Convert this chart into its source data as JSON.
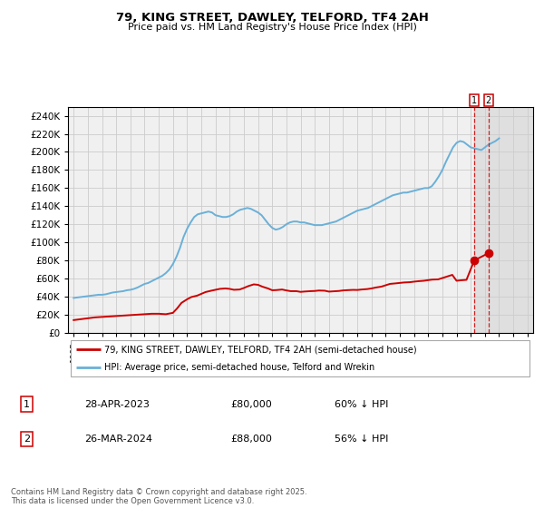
{
  "title": "79, KING STREET, DAWLEY, TELFORD, TF4 2AH",
  "subtitle": "Price paid vs. HM Land Registry's House Price Index (HPI)",
  "ylim": [
    0,
    250000
  ],
  "yticks": [
    0,
    20000,
    40000,
    60000,
    80000,
    100000,
    120000,
    140000,
    160000,
    180000,
    200000,
    220000,
    240000
  ],
  "xlim_min": 1994.6,
  "xlim_max": 2027.4,
  "xticks": [
    1995,
    1996,
    1997,
    1998,
    1999,
    2000,
    2001,
    2002,
    2003,
    2004,
    2005,
    2006,
    2007,
    2008,
    2009,
    2010,
    2011,
    2012,
    2013,
    2014,
    2015,
    2016,
    2017,
    2018,
    2019,
    2020,
    2021,
    2022,
    2023,
    2024,
    2025,
    2026,
    2027
  ],
  "hpi_color": "#6ab0d8",
  "price_color": "#cc0000",
  "grid_color": "#cccccc",
  "background_color": "#ffffff",
  "plot_bg_color": "#f0f0f0",
  "shaded_color": "#dcdcdc",
  "legend_label_price": "79, KING STREET, DAWLEY, TELFORD, TF4 2AH (semi-detached house)",
  "legend_label_hpi": "HPI: Average price, semi-detached house, Telford and Wrekin",
  "transactions": [
    {
      "label": "1",
      "date": "28-APR-2023",
      "price": 80000,
      "pct": "60% ↓ HPI"
    },
    {
      "label": "2",
      "date": "26-MAR-2024",
      "price": 88000,
      "pct": "56% ↓ HPI"
    }
  ],
  "footnote": "Contains HM Land Registry data © Crown copyright and database right 2025.\nThis data is licensed under the Open Government Licence v3.0.",
  "hpi_data_x": [
    1995.0,
    1995.25,
    1995.5,
    1995.75,
    1996.0,
    1996.25,
    1996.5,
    1996.75,
    1997.0,
    1997.25,
    1997.5,
    1997.75,
    1998.0,
    1998.25,
    1998.5,
    1998.75,
    1999.0,
    1999.25,
    1999.5,
    1999.75,
    2000.0,
    2000.25,
    2000.5,
    2000.75,
    2001.0,
    2001.25,
    2001.5,
    2001.75,
    2002.0,
    2002.25,
    2002.5,
    2002.75,
    2003.0,
    2003.25,
    2003.5,
    2003.75,
    2004.0,
    2004.25,
    2004.5,
    2004.75,
    2005.0,
    2005.25,
    2005.5,
    2005.75,
    2006.0,
    2006.25,
    2006.5,
    2006.75,
    2007.0,
    2007.25,
    2007.5,
    2007.75,
    2008.0,
    2008.25,
    2008.5,
    2008.75,
    2009.0,
    2009.25,
    2009.5,
    2009.75,
    2010.0,
    2010.25,
    2010.5,
    2010.75,
    2011.0,
    2011.25,
    2011.5,
    2011.75,
    2012.0,
    2012.25,
    2012.5,
    2012.75,
    2013.0,
    2013.25,
    2013.5,
    2013.75,
    2014.0,
    2014.25,
    2014.5,
    2014.75,
    2015.0,
    2015.25,
    2015.5,
    2015.75,
    2016.0,
    2016.25,
    2016.5,
    2016.75,
    2017.0,
    2017.25,
    2017.5,
    2017.75,
    2018.0,
    2018.25,
    2018.5,
    2018.75,
    2019.0,
    2019.25,
    2019.5,
    2019.75,
    2020.0,
    2020.25,
    2020.5,
    2020.75,
    2021.0,
    2021.25,
    2021.5,
    2021.75,
    2022.0,
    2022.25,
    2022.5,
    2022.75,
    2023.0,
    2023.25,
    2023.5,
    2023.75,
    2024.0,
    2024.25,
    2024.5,
    2024.75,
    2025.0
  ],
  "hpi_data_y": [
    38500,
    39000,
    39500,
    40000,
    40500,
    41000,
    41500,
    42000,
    42000,
    42500,
    43500,
    44500,
    45000,
    45500,
    46000,
    47000,
    47500,
    48500,
    50000,
    52000,
    54000,
    55000,
    57000,
    59000,
    61000,
    63000,
    66000,
    70000,
    76000,
    84000,
    94000,
    106000,
    115000,
    122000,
    128000,
    131000,
    132000,
    133000,
    134000,
    133000,
    130000,
    129000,
    128000,
    128000,
    129000,
    131000,
    134000,
    136000,
    137000,
    138000,
    137000,
    135000,
    133000,
    130000,
    125000,
    120000,
    116000,
    114000,
    115000,
    117000,
    120000,
    122000,
    123000,
    123000,
    122000,
    122000,
    121000,
    120000,
    119000,
    119000,
    119000,
    120000,
    121000,
    122000,
    123000,
    125000,
    127000,
    129000,
    131000,
    133000,
    135000,
    136000,
    137000,
    138000,
    140000,
    142000,
    144000,
    146000,
    148000,
    150000,
    152000,
    153000,
    154000,
    155000,
    155000,
    156000,
    157000,
    158000,
    159000,
    160000,
    160000,
    162000,
    167000,
    173000,
    180000,
    189000,
    197000,
    205000,
    210000,
    212000,
    211000,
    208000,
    205000,
    204000,
    203000,
    202000,
    205000,
    208000,
    210000,
    212000,
    215000
  ],
  "price_data_x": [
    1995.0,
    1995.5,
    1996.0,
    1996.5,
    1997.0,
    1997.5,
    1998.0,
    1998.5,
    1999.0,
    1999.5,
    2000.0,
    2000.5,
    2001.0,
    2001.5,
    2002.0,
    2002.3,
    2002.6,
    2003.0,
    2003.3,
    2003.7,
    2004.0,
    2004.3,
    2004.7,
    2005.0,
    2005.3,
    2005.7,
    2006.0,
    2006.3,
    2006.7,
    2007.0,
    2007.3,
    2007.7,
    2008.0,
    2008.3,
    2008.7,
    2009.0,
    2009.3,
    2009.7,
    2010.0,
    2010.3,
    2010.7,
    2011.0,
    2011.3,
    2011.7,
    2012.0,
    2012.3,
    2012.7,
    2013.0,
    2013.3,
    2013.7,
    2014.0,
    2014.3,
    2014.7,
    2015.0,
    2015.3,
    2015.7,
    2016.0,
    2016.3,
    2016.7,
    2017.0,
    2017.3,
    2017.7,
    2018.0,
    2018.3,
    2018.7,
    2019.0,
    2019.3,
    2019.7,
    2020.0,
    2020.3,
    2020.7,
    2021.0,
    2021.3,
    2021.7,
    2022.0,
    2022.3,
    2022.7,
    2023.25,
    2024.25
  ],
  "price_data_y": [
    14000,
    15000,
    16000,
    17000,
    17500,
    18000,
    18500,
    19000,
    19500,
    20000,
    20500,
    21000,
    21000,
    20500,
    22000,
    27000,
    33000,
    37000,
    39500,
    41000,
    43000,
    45000,
    46500,
    47500,
    48500,
    49000,
    48500,
    47500,
    47800,
    49500,
    51500,
    53500,
    53000,
    51000,
    49000,
    47000,
    47200,
    47800,
    46800,
    46000,
    46000,
    45200,
    45600,
    46000,
    46200,
    46700,
    46500,
    45500,
    45800,
    46200,
    46800,
    47100,
    47400,
    47300,
    47800,
    48300,
    49000,
    50000,
    51000,
    52500,
    54000,
    54600,
    55100,
    55600,
    55900,
    56500,
    57000,
    57500,
    58200,
    58800,
    59000,
    60500,
    62000,
    64000,
    57500,
    58000,
    58500,
    80000,
    88000
  ],
  "marker1_x": 2023.25,
  "marker1_y": 80000,
  "marker2_x": 2024.25,
  "marker2_y": 88000,
  "shaded_start": 2023.25,
  "shaded_end": 2027.4
}
